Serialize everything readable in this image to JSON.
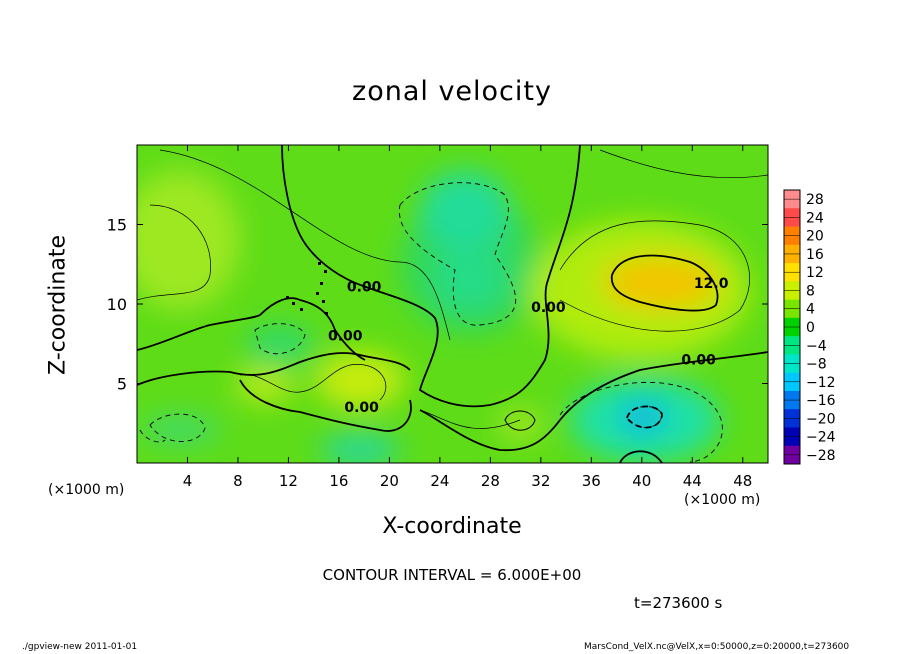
{
  "chart_data": {
    "type": "heatmap",
    "title": "zonal velocity",
    "xlabel": "X-coordinate",
    "ylabel": "Z-coordinate",
    "x_unit": "(×1000 m)",
    "xlim": [
      0,
      50
    ],
    "ylim": [
      0,
      20
    ],
    "x_ticks": [
      4,
      8,
      12,
      16,
      20,
      24,
      28,
      32,
      36,
      40,
      44,
      48
    ],
    "y_ticks": [
      5,
      10,
      15
    ],
    "colorbar": {
      "levels": [
        28,
        24,
        20,
        16,
        12,
        8,
        4,
        0,
        -4,
        -8,
        -12,
        -16,
        -20,
        -24,
        -28
      ],
      "colors": [
        "#ff8c8c",
        "#ff4a4a",
        "#ff8000",
        "#ffb000",
        "#ffe000",
        "#c8f000",
        "#78e600",
        "#00d200",
        "#00e680",
        "#00e6c8",
        "#00c8ff",
        "#0078f0",
        "#0030d8",
        "#0000b4",
        "#7000a0"
      ]
    },
    "contour_labels": [
      {
        "text": "0.00",
        "x": 18,
        "y": 10.8
      },
      {
        "text": "0.00",
        "x": 16.5,
        "y": 7.7
      },
      {
        "text": "0.00",
        "x": 17.8,
        "y": 3.2
      },
      {
        "text": "0.00",
        "x": 32.6,
        "y": 9.5
      },
      {
        "text": "0.00",
        "x": 44.5,
        "y": 6.2
      },
      {
        "text": "12.0",
        "x": 45.5,
        "y": 11.0
      }
    ],
    "contour_interval": "CONTOUR INTERVAL = 6.000E+00",
    "time": "t=273600 s"
  },
  "footer": {
    "left": "./gpview-new   2011-01-01",
    "right": "MarsCond_VelX.nc@VelX,x=0:50000,z=0:20000,t=273600"
  }
}
